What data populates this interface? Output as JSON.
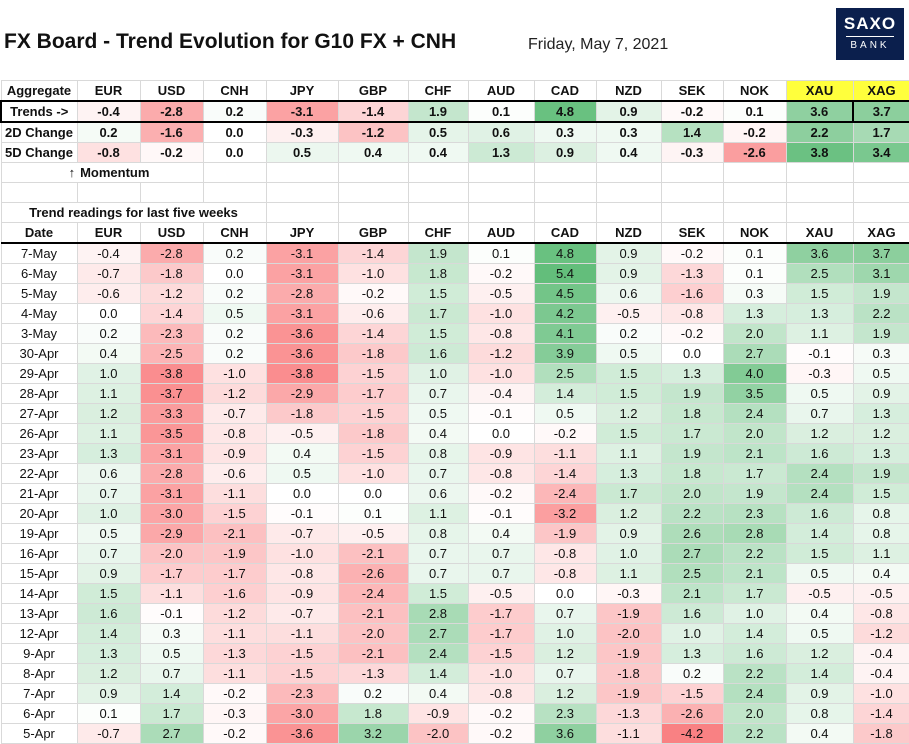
{
  "header": {
    "title": "FX Board - Trend Evolution for G10 FX + CNH",
    "date": "Friday, May 7, 2021",
    "logo_top": "SAXO",
    "logo_bottom": "BANK"
  },
  "columns": [
    "EUR",
    "USD",
    "CNH",
    "JPY",
    "GBP",
    "CHF",
    "AUD",
    "CAD",
    "NZD",
    "SEK",
    "NOK",
    "XAU",
    "XAG"
  ],
  "summary": {
    "aggregate_label": "Aggregate",
    "rows": [
      {
        "label": "Trends ->",
        "values": [
          "-0.4",
          "-2.8",
          "0.2",
          "-3.1",
          "-1.4",
          "1.9",
          "0.1",
          "4.8",
          "0.9",
          "-0.2",
          "0.1",
          "3.6",
          "3.7"
        ]
      },
      {
        "label": "2D Change",
        "values": [
          "0.2",
          "-1.6",
          "0.0",
          "-0.3",
          "-1.2",
          "0.5",
          "0.6",
          "0.3",
          "0.3",
          "1.4",
          "-0.2",
          "2.2",
          "1.7"
        ]
      },
      {
        "label": "5D Change",
        "values": [
          "-0.8",
          "-0.2",
          "0.0",
          "0.5",
          "0.4",
          "0.4",
          "1.3",
          "0.9",
          "0.4",
          "-0.3",
          "-2.6",
          "3.8",
          "3.4"
        ]
      }
    ],
    "momentum_label": "Momentum",
    "momentum_arrow": "↑"
  },
  "weekly": {
    "title": "Trend readings for last five weeks",
    "date_label": "Date",
    "rows": [
      {
        "date": "7-May",
        "values": [
          "-0.4",
          "-2.8",
          "0.2",
          "-3.1",
          "-1.4",
          "1.9",
          "0.1",
          "4.8",
          "0.9",
          "-0.2",
          "0.1",
          "3.6",
          "3.7"
        ]
      },
      {
        "date": "6-May",
        "values": [
          "-0.7",
          "-1.8",
          "0.0",
          "-3.1",
          "-1.0",
          "1.8",
          "-0.2",
          "5.4",
          "0.9",
          "-1.3",
          "0.1",
          "2.5",
          "3.1"
        ]
      },
      {
        "date": "5-May",
        "values": [
          "-0.6",
          "-1.2",
          "0.2",
          "-2.8",
          "-0.2",
          "1.5",
          "-0.5",
          "4.5",
          "0.6",
          "-1.6",
          "0.3",
          "1.5",
          "1.9"
        ]
      },
      {
        "date": "4-May",
        "values": [
          "0.0",
          "-1.4",
          "0.5",
          "-3.1",
          "-0.6",
          "1.7",
          "-1.0",
          "4.2",
          "-0.5",
          "-0.8",
          "1.3",
          "1.3",
          "2.2"
        ]
      },
      {
        "date": "3-May",
        "values": [
          "0.2",
          "-2.3",
          "0.2",
          "-3.6",
          "-1.4",
          "1.5",
          "-0.8",
          "4.1",
          "0.2",
          "-0.2",
          "2.0",
          "1.1",
          "1.9"
        ]
      },
      {
        "date": "30-Apr",
        "values": [
          "0.4",
          "-2.5",
          "0.2",
          "-3.6",
          "-1.8",
          "1.6",
          "-1.2",
          "3.9",
          "0.5",
          "0.0",
          "2.7",
          "-0.1",
          "0.3"
        ]
      },
      {
        "date": "29-Apr",
        "values": [
          "1.0",
          "-3.8",
          "-1.0",
          "-3.8",
          "-1.5",
          "1.0",
          "-1.0",
          "2.5",
          "1.5",
          "1.3",
          "4.0",
          "-0.3",
          "0.5"
        ]
      },
      {
        "date": "28-Apr",
        "values": [
          "1.1",
          "-3.7",
          "-1.2",
          "-2.9",
          "-1.7",
          "0.7",
          "-0.4",
          "1.4",
          "1.5",
          "1.9",
          "3.5",
          "0.5",
          "0.9"
        ]
      },
      {
        "date": "27-Apr",
        "values": [
          "1.2",
          "-3.3",
          "-0.7",
          "-1.8",
          "-1.5",
          "0.5",
          "-0.1",
          "0.5",
          "1.2",
          "1.8",
          "2.4",
          "0.7",
          "1.3"
        ]
      },
      {
        "date": "26-Apr",
        "values": [
          "1.1",
          "-3.5",
          "-0.8",
          "-0.5",
          "-1.8",
          "0.4",
          "0.0",
          "-0.2",
          "1.5",
          "1.7",
          "2.0",
          "1.2",
          "1.2"
        ]
      },
      {
        "date": "23-Apr",
        "values": [
          "1.3",
          "-3.1",
          "-0.9",
          "0.4",
          "-1.5",
          "0.8",
          "-0.9",
          "-1.1",
          "1.1",
          "1.9",
          "2.1",
          "1.6",
          "1.3"
        ]
      },
      {
        "date": "22-Apr",
        "values": [
          "0.6",
          "-2.8",
          "-0.6",
          "0.5",
          "-1.0",
          "0.7",
          "-0.8",
          "-1.4",
          "1.3",
          "1.8",
          "1.7",
          "2.4",
          "1.9"
        ]
      },
      {
        "date": "21-Apr",
        "values": [
          "0.7",
          "-3.1",
          "-1.1",
          "0.0",
          "0.0",
          "0.6",
          "-0.2",
          "-2.4",
          "1.7",
          "2.0",
          "1.9",
          "2.4",
          "1.5"
        ]
      },
      {
        "date": "20-Apr",
        "values": [
          "1.0",
          "-3.0",
          "-1.5",
          "-0.1",
          "0.1",
          "1.1",
          "-0.1",
          "-3.2",
          "1.2",
          "2.2",
          "2.3",
          "1.6",
          "0.8"
        ]
      },
      {
        "date": "19-Apr",
        "values": [
          "0.5",
          "-2.9",
          "-2.1",
          "-0.7",
          "-0.5",
          "0.8",
          "0.4",
          "-1.9",
          "0.9",
          "2.6",
          "2.8",
          "1.4",
          "0.8"
        ]
      },
      {
        "date": "16-Apr",
        "values": [
          "0.7",
          "-2.0",
          "-1.9",
          "-1.0",
          "-2.1",
          "0.7",
          "0.7",
          "-0.8",
          "1.0",
          "2.7",
          "2.2",
          "1.5",
          "1.1"
        ]
      },
      {
        "date": "15-Apr",
        "values": [
          "0.9",
          "-1.7",
          "-1.7",
          "-0.8",
          "-2.6",
          "0.7",
          "0.7",
          "-0.8",
          "1.1",
          "2.5",
          "2.1",
          "0.5",
          "0.4"
        ]
      },
      {
        "date": "14-Apr",
        "values": [
          "1.5",
          "-1.1",
          "-1.6",
          "-0.9",
          "-2.4",
          "1.5",
          "-0.5",
          "0.0",
          "-0.3",
          "2.1",
          "1.7",
          "-0.5",
          "-0.5"
        ]
      },
      {
        "date": "13-Apr",
        "values": [
          "1.6",
          "-0.1",
          "-1.2",
          "-0.7",
          "-2.1",
          "2.8",
          "-1.7",
          "0.7",
          "-1.9",
          "1.6",
          "1.0",
          "0.4",
          "-0.8"
        ]
      },
      {
        "date": "12-Apr",
        "values": [
          "1.4",
          "0.3",
          "-1.1",
          "-1.1",
          "-2.0",
          "2.7",
          "-1.7",
          "1.0",
          "-2.0",
          "1.0",
          "1.4",
          "0.5",
          "-1.2"
        ]
      },
      {
        "date": "9-Apr",
        "values": [
          "1.3",
          "0.5",
          "-1.3",
          "-1.5",
          "-2.1",
          "2.4",
          "-1.5",
          "1.2",
          "-1.9",
          "1.3",
          "1.6",
          "1.2",
          "-0.4"
        ]
      },
      {
        "date": "8-Apr",
        "values": [
          "1.2",
          "0.7",
          "-1.1",
          "-1.5",
          "-1.3",
          "1.4",
          "-1.0",
          "0.7",
          "-1.8",
          "0.2",
          "2.2",
          "1.4",
          "-0.4"
        ]
      },
      {
        "date": "7-Apr",
        "values": [
          "0.9",
          "1.4",
          "-0.2",
          "-2.3",
          "0.2",
          "0.4",
          "-0.8",
          "1.2",
          "-1.9",
          "-1.5",
          "2.4",
          "0.9",
          "-1.0"
        ]
      },
      {
        "date": "6-Apr",
        "values": [
          "0.1",
          "1.7",
          "-0.3",
          "-3.0",
          "1.8",
          "-0.9",
          "-0.2",
          "2.3",
          "-1.3",
          "-2.6",
          "2.0",
          "0.8",
          "-1.4"
        ]
      },
      {
        "date": "5-Apr",
        "values": [
          "-0.7",
          "2.7",
          "-0.2",
          "-3.6",
          "3.2",
          "-2.0",
          "-0.2",
          "3.6",
          "-1.1",
          "-4.2",
          "2.2",
          "0.4",
          "-1.8"
        ]
      }
    ]
  },
  "colors": {
    "positive": "#63be7b",
    "negative": "#f8696b",
    "neutral": "#ffffff",
    "highlight": "#ffff3c",
    "logo_bg": "#0b1f4d"
  }
}
